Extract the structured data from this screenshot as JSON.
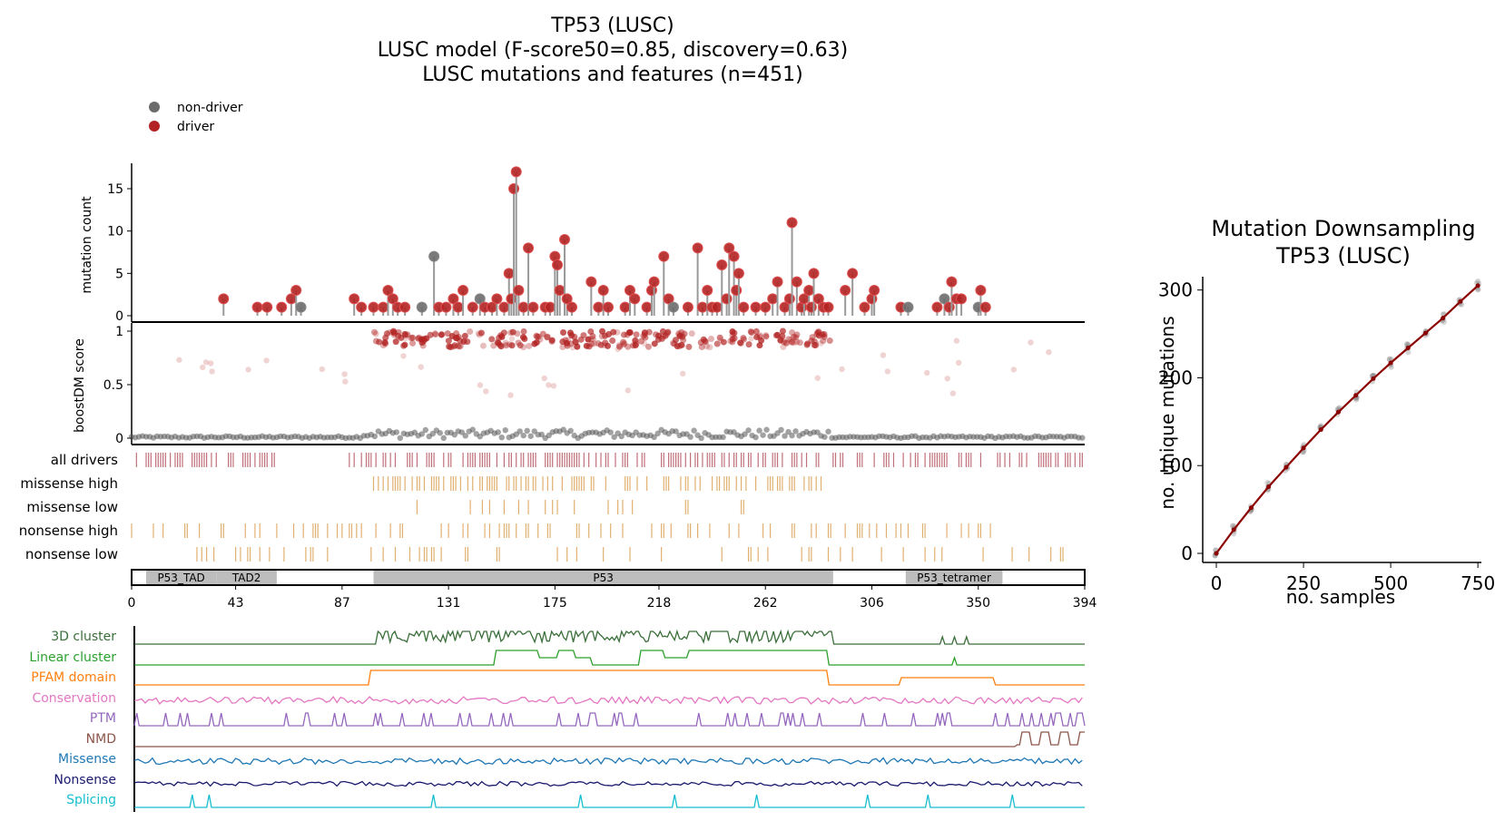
{
  "figure": {
    "title_lines": [
      "TP53 (LUSC)",
      "LUSC model (F-score50=0.85, discovery=0.63)",
      "LUSC mutations and features (n=451)"
    ],
    "legend": [
      {
        "label": "non-driver",
        "color": "#6b6b6b"
      },
      {
        "label": "driver",
        "color": "#b22222"
      }
    ],
    "colors": {
      "driver": "#b22222",
      "nondriver": "#6b6b6b",
      "tick_drivers": "#c0707a",
      "tick_other": "#e0b070",
      "domain_fill": "#bdbdbd"
    }
  },
  "chart_data": [
    {
      "type": "scatter",
      "name": "lollipop",
      "ylabel": "mutation count",
      "xlim": [
        0,
        394
      ],
      "ylim": [
        0,
        18
      ],
      "yticks": [
        0,
        5,
        10,
        15
      ],
      "points": [
        {
          "x": 38,
          "y": 2,
          "cls": "driver"
        },
        {
          "x": 52,
          "y": 1,
          "cls": "driver"
        },
        {
          "x": 56,
          "y": 1,
          "cls": "driver"
        },
        {
          "x": 62,
          "y": 1,
          "cls": "driver"
        },
        {
          "x": 66,
          "y": 2,
          "cls": "driver"
        },
        {
          "x": 68,
          "y": 3,
          "cls": "driver"
        },
        {
          "x": 70,
          "y": 1,
          "cls": "nondriver"
        },
        {
          "x": 92,
          "y": 2,
          "cls": "driver"
        },
        {
          "x": 95,
          "y": 1,
          "cls": "driver"
        },
        {
          "x": 100,
          "y": 1,
          "cls": "driver"
        },
        {
          "x": 104,
          "y": 1,
          "cls": "driver"
        },
        {
          "x": 106,
          "y": 3,
          "cls": "driver"
        },
        {
          "x": 108,
          "y": 2,
          "cls": "driver"
        },
        {
          "x": 110,
          "y": 1,
          "cls": "driver"
        },
        {
          "x": 113,
          "y": 1,
          "cls": "driver"
        },
        {
          "x": 120,
          "y": 1,
          "cls": "nondriver"
        },
        {
          "x": 125,
          "y": 7,
          "cls": "nondriver"
        },
        {
          "x": 127,
          "y": 1,
          "cls": "driver"
        },
        {
          "x": 130,
          "y": 1,
          "cls": "driver"
        },
        {
          "x": 133,
          "y": 2,
          "cls": "driver"
        },
        {
          "x": 135,
          "y": 1,
          "cls": "driver"
        },
        {
          "x": 137,
          "y": 3,
          "cls": "driver"
        },
        {
          "x": 141,
          "y": 1,
          "cls": "driver"
        },
        {
          "x": 144,
          "y": 2,
          "cls": "nondriver"
        },
        {
          "x": 146,
          "y": 1,
          "cls": "driver"
        },
        {
          "x": 149,
          "y": 1,
          "cls": "driver"
        },
        {
          "x": 151,
          "y": 2,
          "cls": "driver"
        },
        {
          "x": 154,
          "y": 1,
          "cls": "driver"
        },
        {
          "x": 156,
          "y": 5,
          "cls": "driver"
        },
        {
          "x": 157,
          "y": 2,
          "cls": "driver"
        },
        {
          "x": 158,
          "y": 15,
          "cls": "driver"
        },
        {
          "x": 159,
          "y": 17,
          "cls": "driver"
        },
        {
          "x": 160,
          "y": 3,
          "cls": "driver"
        },
        {
          "x": 162,
          "y": 1,
          "cls": "driver"
        },
        {
          "x": 164,
          "y": 8,
          "cls": "driver"
        },
        {
          "x": 166,
          "y": 1,
          "cls": "driver"
        },
        {
          "x": 171,
          "y": 1,
          "cls": "driver"
        },
        {
          "x": 173,
          "y": 1,
          "cls": "driver"
        },
        {
          "x": 175,
          "y": 7,
          "cls": "driver"
        },
        {
          "x": 176,
          "y": 6,
          "cls": "driver"
        },
        {
          "x": 177,
          "y": 3,
          "cls": "driver"
        },
        {
          "x": 179,
          "y": 9,
          "cls": "driver"
        },
        {
          "x": 180,
          "y": 2,
          "cls": "driver"
        },
        {
          "x": 182,
          "y": 1,
          "cls": "driver"
        },
        {
          "x": 190,
          "y": 4,
          "cls": "driver"
        },
        {
          "x": 193,
          "y": 1,
          "cls": "driver"
        },
        {
          "x": 195,
          "y": 3,
          "cls": "driver"
        },
        {
          "x": 197,
          "y": 1,
          "cls": "driver"
        },
        {
          "x": 204,
          "y": 1,
          "cls": "driver"
        },
        {
          "x": 206,
          "y": 3,
          "cls": "driver"
        },
        {
          "x": 208,
          "y": 2,
          "cls": "driver"
        },
        {
          "x": 213,
          "y": 1,
          "cls": "driver"
        },
        {
          "x": 215,
          "y": 3,
          "cls": "driver"
        },
        {
          "x": 216,
          "y": 4,
          "cls": "driver"
        },
        {
          "x": 220,
          "y": 7,
          "cls": "driver"
        },
        {
          "x": 222,
          "y": 2,
          "cls": "driver"
        },
        {
          "x": 224,
          "y": 1,
          "cls": "nondriver"
        },
        {
          "x": 230,
          "y": 1,
          "cls": "driver"
        },
        {
          "x": 234,
          "y": 8,
          "cls": "driver"
        },
        {
          "x": 236,
          "y": 1,
          "cls": "driver"
        },
        {
          "x": 238,
          "y": 3,
          "cls": "driver"
        },
        {
          "x": 240,
          "y": 1,
          "cls": "driver"
        },
        {
          "x": 242,
          "y": 1,
          "cls": "driver"
        },
        {
          "x": 244,
          "y": 6,
          "cls": "driver"
        },
        {
          "x": 246,
          "y": 2,
          "cls": "driver"
        },
        {
          "x": 247,
          "y": 8,
          "cls": "driver"
        },
        {
          "x": 249,
          "y": 7,
          "cls": "driver"
        },
        {
          "x": 250,
          "y": 3,
          "cls": "driver"
        },
        {
          "x": 251,
          "y": 5,
          "cls": "driver"
        },
        {
          "x": 253,
          "y": 1,
          "cls": "driver"
        },
        {
          "x": 258,
          "y": 1,
          "cls": "driver"
        },
        {
          "x": 262,
          "y": 1,
          "cls": "driver"
        },
        {
          "x": 265,
          "y": 2,
          "cls": "driver"
        },
        {
          "x": 267,
          "y": 4,
          "cls": "driver"
        },
        {
          "x": 270,
          "y": 1,
          "cls": "driver"
        },
        {
          "x": 272,
          "y": 2,
          "cls": "driver"
        },
        {
          "x": 273,
          "y": 11,
          "cls": "driver"
        },
        {
          "x": 275,
          "y": 4,
          "cls": "driver"
        },
        {
          "x": 277,
          "y": 1,
          "cls": "driver"
        },
        {
          "x": 278,
          "y": 2,
          "cls": "driver"
        },
        {
          "x": 280,
          "y": 3,
          "cls": "driver"
        },
        {
          "x": 281,
          "y": 1,
          "cls": "driver"
        },
        {
          "x": 282,
          "y": 5,
          "cls": "driver"
        },
        {
          "x": 284,
          "y": 2,
          "cls": "driver"
        },
        {
          "x": 286,
          "y": 1,
          "cls": "driver"
        },
        {
          "x": 288,
          "y": 1,
          "cls": "driver"
        },
        {
          "x": 295,
          "y": 3,
          "cls": "driver"
        },
        {
          "x": 298,
          "y": 5,
          "cls": "driver"
        },
        {
          "x": 303,
          "y": 1,
          "cls": "driver"
        },
        {
          "x": 306,
          "y": 2,
          "cls": "driver"
        },
        {
          "x": 307,
          "y": 3,
          "cls": "driver"
        },
        {
          "x": 318,
          "y": 1,
          "cls": "driver"
        },
        {
          "x": 321,
          "y": 1,
          "cls": "nondriver"
        },
        {
          "x": 333,
          "y": 1,
          "cls": "driver"
        },
        {
          "x": 336,
          "y": 2,
          "cls": "nondriver"
        },
        {
          "x": 338,
          "y": 1,
          "cls": "driver"
        },
        {
          "x": 339,
          "y": 4,
          "cls": "driver"
        },
        {
          "x": 341,
          "y": 2,
          "cls": "driver"
        },
        {
          "x": 343,
          "y": 2,
          "cls": "driver"
        },
        {
          "x": 350,
          "y": 1,
          "cls": "nondriver"
        },
        {
          "x": 351,
          "y": 3,
          "cls": "driver"
        },
        {
          "x": 353,
          "y": 1,
          "cls": "driver"
        }
      ]
    },
    {
      "type": "scatter",
      "name": "boostdm",
      "ylabel": "boostDM score",
      "xlim": [
        0,
        394
      ],
      "ylim": [
        0,
        1
      ],
      "yticks": [
        0,
        0.5,
        1
      ]
    },
    {
      "type": "table",
      "name": "ticks",
      "rows": [
        {
          "label": "all drivers",
          "ranges": [
            [
              0,
              60
            ],
            [
              90,
              394
            ]
          ],
          "density": 0.55,
          "color": "tick_drivers"
        },
        {
          "label": "missense high",
          "ranges": [
            [
              100,
              285
            ]
          ],
          "density": 0.4,
          "color": "tick_other"
        },
        {
          "label": "missense low",
          "ranges": [
            [
              100,
              270
            ],
            [
              338,
              342
            ]
          ],
          "density": 0.12,
          "color": "tick_other"
        },
        {
          "label": "nonsense high",
          "ranges": [
            [
              0,
              360
            ]
          ],
          "density": 0.22,
          "color": "tick_other"
        },
        {
          "label": "nonsense low",
          "ranges": [
            [
              0,
              394
            ]
          ],
          "density": 0.14,
          "color": "tick_other"
        }
      ]
    },
    {
      "type": "bar",
      "name": "domains",
      "xlim": [
        0,
        394
      ],
      "xticks": [
        0,
        43,
        87,
        131,
        175,
        218,
        262,
        306,
        350,
        394
      ],
      "domains": [
        {
          "label": "P53_TAD",
          "start": 6,
          "end": 35
        },
        {
          "label": "TAD2",
          "start": 35,
          "end": 60
        },
        {
          "label": "P53",
          "start": 100,
          "end": 290
        },
        {
          "label": "P53_tetramer",
          "start": 320,
          "end": 360
        }
      ]
    },
    {
      "type": "line",
      "name": "feature_tracks",
      "tracks": [
        {
          "label": "3D cluster",
          "color": "#3a6e3a"
        },
        {
          "label": "Linear cluster",
          "color": "#2ca02c"
        },
        {
          "label": "PFAM domain",
          "color": "#ff7f0e"
        },
        {
          "label": "Conservation",
          "color": "#e377c2"
        },
        {
          "label": "PTM",
          "color": "#9467bd"
        },
        {
          "label": "NMD",
          "color": "#8c564b"
        },
        {
          "label": "Missense",
          "color": "#1f77b4"
        },
        {
          "label": "Nonsense",
          "color": "#1a1a6e"
        },
        {
          "label": "Splicing",
          "color": "#17becf"
        }
      ]
    },
    {
      "type": "line",
      "name": "downsampling",
      "title_lines": [
        "Mutation Downsampling",
        "TP53 (LUSC)"
      ],
      "xlabel": "no. samples",
      "ylabel": "no. unique mutations",
      "xlim": [
        0,
        760
      ],
      "ylim": [
        0,
        310
      ],
      "xticks": [
        0,
        250,
        500,
        750
      ],
      "yticks": [
        0,
        100,
        200,
        300
      ],
      "x": [
        0,
        50,
        100,
        150,
        200,
        250,
        300,
        350,
        400,
        450,
        500,
        550,
        600,
        650,
        700,
        750
      ],
      "y": [
        0,
        27,
        52,
        76,
        98,
        120,
        141,
        161,
        180,
        199,
        217,
        234,
        251,
        268,
        287,
        305
      ],
      "color": "#8b0000"
    }
  ]
}
